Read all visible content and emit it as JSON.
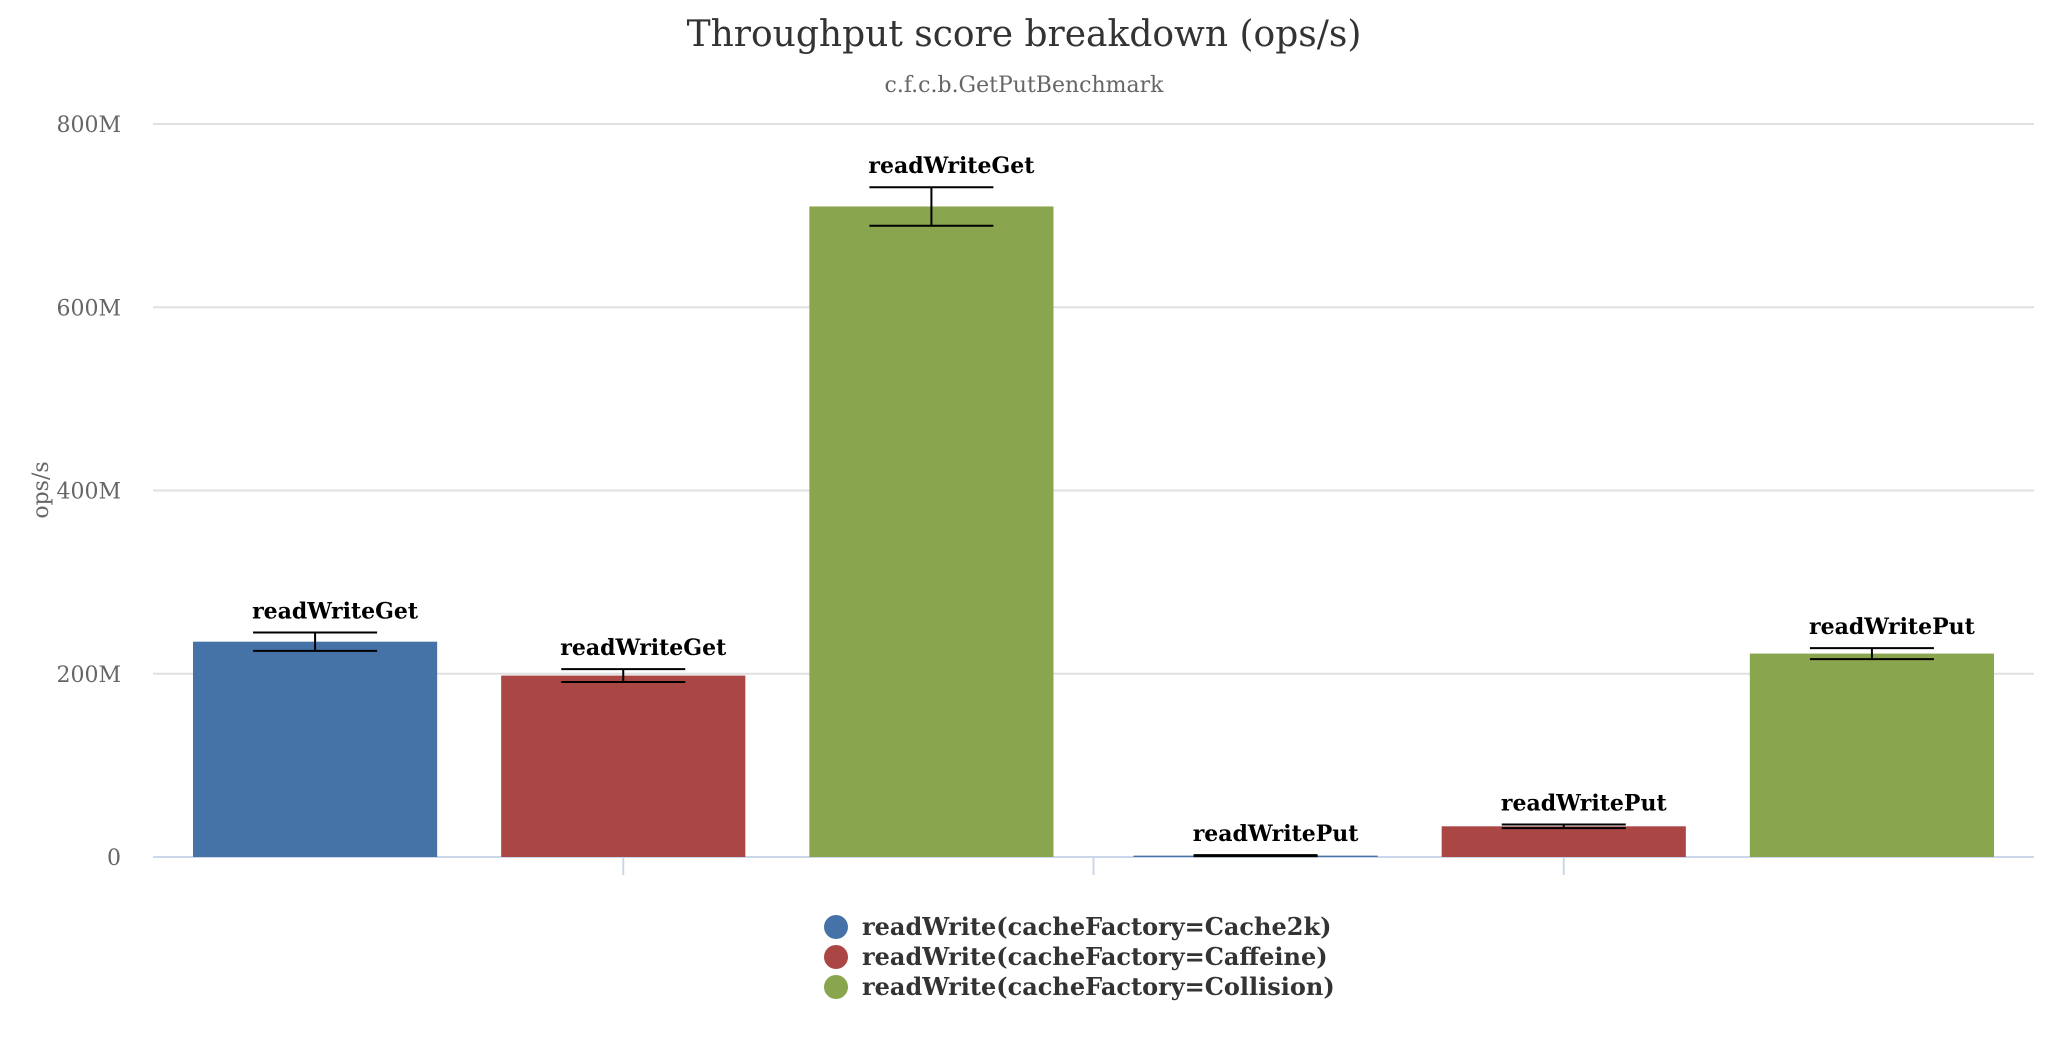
{
  "chart_data": {
    "type": "bar",
    "title": "Throughput score breakdown (ops/s)",
    "subtitle": "c.f.c.b.GetPutBenchmark",
    "ylabel": "ops/s",
    "ylim": [
      0,
      800000000
    ],
    "yticks": [
      0,
      200000000,
      400000000,
      600000000,
      800000000
    ],
    "ytick_labels": [
      "0",
      "200M",
      "400M",
      "600M",
      "800M"
    ],
    "grid": true,
    "legend_position": "bottom-center",
    "categories": [
      "readWriteGet",
      "readWritePut"
    ],
    "series": [
      {
        "name": "readWrite(cacheFactory=Cache2k)",
        "color": "#4572a7",
        "values": [
          235000000,
          1500000
        ],
        "errors": [
          10000000,
          500000
        ],
        "labels": [
          "readWriteGet",
          "readWritePut"
        ]
      },
      {
        "name": "readWrite(cacheFactory=Caffeine)",
        "color": "#aa4643",
        "values": [
          198000000,
          33500000
        ],
        "errors": [
          7000000,
          2000000
        ],
        "labels": [
          "readWriteGet",
          "readWritePut"
        ]
      },
      {
        "name": "readWrite(cacheFactory=Collision)",
        "color": "#89a54e",
        "values": [
          710000000,
          222000000
        ],
        "errors": [
          21000000,
          6000000
        ],
        "labels": [
          "readWriteGet",
          "readWritePut"
        ]
      }
    ]
  }
}
